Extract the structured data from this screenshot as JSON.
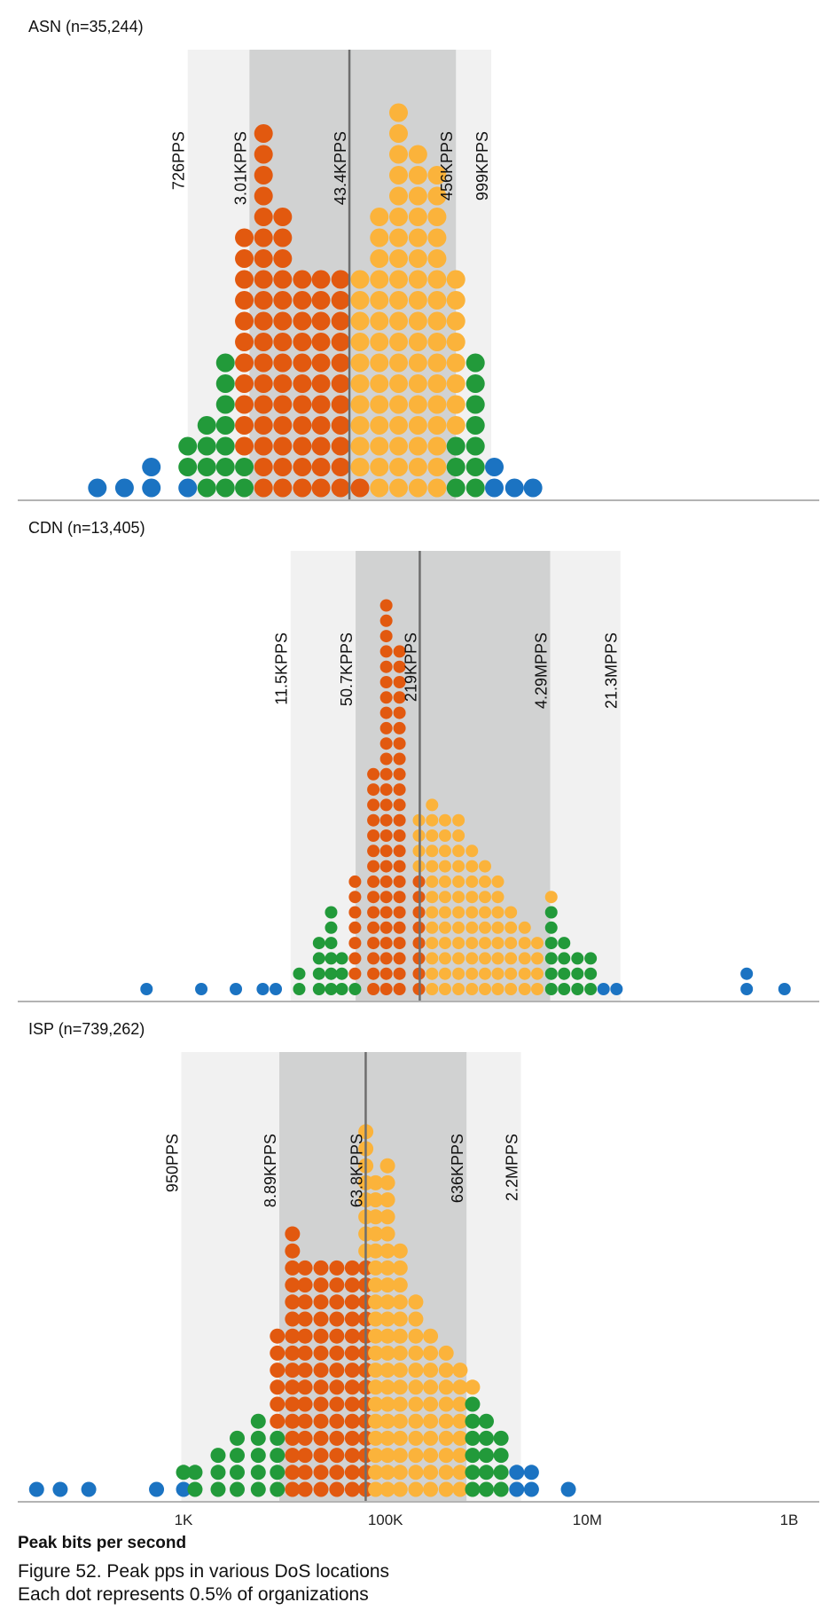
{
  "colors": {
    "outer_band": "#f1f1f1",
    "inner_band": "#d1d2d2",
    "median_line": "#6e6e6e",
    "below_p5_or_above_p95": "#1b73c2",
    "p5_to_p25_or_p75_to_p95": "#229a3a",
    "p25_to_median": "#e2590f",
    "median_to_p75": "#fbb33b"
  },
  "chart_data": [
    {
      "type": "scatter",
      "subtype": "dot-histogram",
      "title": "ASN (n=35,244)",
      "x_scale": "log10",
      "xlim": [
        1,
        1000000000
      ],
      "ticks": [
        1000,
        100000,
        10000000,
        1000000000
      ],
      "tick_labels": [
        "1K",
        "100K",
        "10M",
        "1B"
      ],
      "reference_lines": [
        {
          "label": "726PPS",
          "x": 1100
        },
        {
          "label": "3.01KPPS",
          "x": 4500
        },
        {
          "label": "43.4KPPS",
          "x": 44000
        },
        {
          "label": "456KPPS",
          "x": 500000
        },
        {
          "label": "999KPPS",
          "x": 1120000
        }
      ],
      "bin_x_start": 140,
      "bin_x_ratio": 1.3,
      "columns": [
        {
          "x": 140,
          "counts": [
            1,
            0,
            0,
            0
          ]
        },
        {
          "x": 260,
          "counts": [
            1,
            0,
            0,
            0
          ]
        },
        {
          "x": 480,
          "counts": [
            2,
            0,
            0,
            0
          ]
        },
        {
          "x": 1100,
          "counts": [
            1,
            2,
            0,
            0
          ]
        },
        {
          "x": 1700,
          "counts": [
            0,
            4,
            0,
            0
          ]
        },
        {
          "x": 2600,
          "counts": [
            0,
            7,
            0,
            0
          ]
        },
        {
          "x": 4000,
          "counts": [
            0,
            2,
            11,
            0
          ]
        },
        {
          "x": 6200,
          "counts": [
            0,
            0,
            18,
            0
          ]
        },
        {
          "x": 9600,
          "counts": [
            0,
            0,
            14,
            0
          ]
        },
        {
          "x": 15000,
          "counts": [
            0,
            0,
            11,
            0
          ]
        },
        {
          "x": 23000,
          "counts": [
            0,
            0,
            11,
            0
          ]
        },
        {
          "x": 36000,
          "counts": [
            0,
            0,
            11,
            0
          ]
        },
        {
          "x": 56000,
          "counts": [
            0,
            0,
            1,
            10
          ]
        },
        {
          "x": 87000,
          "counts": [
            0,
            0,
            0,
            14
          ]
        },
        {
          "x": 135000,
          "counts": [
            0,
            0,
            0,
            19
          ]
        },
        {
          "x": 210000,
          "counts": [
            0,
            0,
            0,
            17
          ]
        },
        {
          "x": 325000,
          "counts": [
            0,
            0,
            0,
            16
          ]
        },
        {
          "x": 500000,
          "counts": [
            0,
            3,
            0,
            8
          ]
        },
        {
          "x": 780000,
          "counts": [
            0,
            7,
            0,
            0
          ]
        },
        {
          "x": 1200000,
          "counts": [
            2,
            0,
            0,
            0
          ]
        },
        {
          "x": 1900000,
          "counts": [
            1,
            0,
            0,
            0
          ]
        },
        {
          "x": 2900000,
          "counts": [
            1,
            0,
            0,
            0
          ]
        }
      ]
    },
    {
      "type": "scatter",
      "subtype": "dot-histogram",
      "title": "CDN (n=13,405)",
      "x_scale": "log10",
      "xlim": [
        1,
        1000000000
      ],
      "ticks": [
        1000,
        100000,
        10000000,
        1000000000
      ],
      "tick_labels": [
        "1K",
        "100K",
        "10M",
        "1B"
      ],
      "reference_lines": [
        {
          "label": "11.5KPPS",
          "x": 11500
        },
        {
          "label": "50.7KPPS",
          "x": 50700
        },
        {
          "label": "219KPPS",
          "x": 219000
        },
        {
          "label": "4.29MPPS",
          "x": 4290000
        },
        {
          "label": "21.3MPPS",
          "x": 21300000
        }
      ],
      "bin_x_start": 430,
      "bin_x_ratio": 1.23,
      "columns": [
        {
          "x": 430,
          "counts": [
            1,
            0,
            0,
            0
          ]
        },
        {
          "x": 1500,
          "counts": [
            1,
            0,
            0,
            0
          ]
        },
        {
          "x": 3300,
          "counts": [
            1,
            0,
            0,
            0
          ]
        },
        {
          "x": 6100,
          "counts": [
            1,
            0,
            0,
            0
          ]
        },
        {
          "x": 8200,
          "counts": [
            1,
            0,
            0,
            0
          ]
        },
        {
          "x": 14000,
          "counts": [
            0,
            2,
            0,
            0
          ]
        },
        {
          "x": 22000,
          "counts": [
            0,
            4,
            0,
            0
          ]
        },
        {
          "x": 29000,
          "counts": [
            0,
            6,
            0,
            0
          ]
        },
        {
          "x": 37000,
          "counts": [
            0,
            3,
            0,
            0
          ]
        },
        {
          "x": 50000,
          "counts": [
            0,
            1,
            7,
            0
          ]
        },
        {
          "x": 76000,
          "counts": [
            0,
            0,
            15,
            0
          ]
        },
        {
          "x": 102000,
          "counts": [
            0,
            0,
            26,
            0
          ]
        },
        {
          "x": 138000,
          "counts": [
            0,
            0,
            23,
            0
          ]
        },
        {
          "x": 215000,
          "counts": [
            0,
            0,
            8,
            4
          ]
        },
        {
          "x": 290000,
          "counts": [
            0,
            0,
            0,
            13
          ]
        },
        {
          "x": 390000,
          "counts": [
            0,
            0,
            0,
            12
          ]
        },
        {
          "x": 530000,
          "counts": [
            0,
            0,
            0,
            12
          ]
        },
        {
          "x": 720000,
          "counts": [
            0,
            0,
            0,
            10
          ]
        },
        {
          "x": 970000,
          "counts": [
            0,
            0,
            0,
            9
          ]
        },
        {
          "x": 1300000,
          "counts": [
            0,
            0,
            0,
            8
          ]
        },
        {
          "x": 1750000,
          "counts": [
            0,
            0,
            0,
            6
          ]
        },
        {
          "x": 2400000,
          "counts": [
            0,
            0,
            0,
            5
          ]
        },
        {
          "x": 3200000,
          "counts": [
            0,
            0,
            0,
            4
          ]
        },
        {
          "x": 4400000,
          "counts": [
            0,
            6,
            0,
            1
          ]
        },
        {
          "x": 5900000,
          "counts": [
            0,
            4,
            0,
            0
          ]
        },
        {
          "x": 8000000,
          "counts": [
            0,
            3,
            0,
            0
          ]
        },
        {
          "x": 10800000,
          "counts": [
            0,
            3,
            0,
            0
          ]
        },
        {
          "x": 14500000,
          "counts": [
            1,
            0,
            0,
            0
          ]
        },
        {
          "x": 19500000,
          "counts": [
            1,
            0,
            0,
            0
          ]
        },
        {
          "x": 380000000,
          "counts": [
            2,
            0,
            0,
            0
          ]
        },
        {
          "x": 900000000,
          "counts": [
            1,
            0,
            0,
            0
          ]
        }
      ]
    },
    {
      "type": "scatter",
      "subtype": "dot-histogram",
      "title": "ISP (n=739,262)",
      "x_scale": "log10",
      "xlim": [
        1,
        1000000000
      ],
      "ticks": [
        1000,
        100000,
        10000000,
        1000000000
      ],
      "tick_labels": [
        "1K",
        "100K",
        "10M",
        "1B"
      ],
      "reference_lines": [
        {
          "label": "950PPS",
          "x": 950
        },
        {
          "label": "8.89KPPS",
          "x": 8890
        },
        {
          "label": "63.8KPPS",
          "x": 63800
        },
        {
          "label": "636KPPS",
          "x": 636000
        },
        {
          "label": "2.2MPPS",
          "x": 2200000
        }
      ],
      "bin_x_start": 35,
      "bin_x_ratio": 1.29,
      "columns": [
        {
          "x": 35,
          "counts": [
            1,
            0,
            0,
            0
          ]
        },
        {
          "x": 60,
          "counts": [
            1,
            0,
            0,
            0
          ]
        },
        {
          "x": 115,
          "counts": [
            1,
            0,
            0,
            0
          ]
        },
        {
          "x": 540,
          "counts": [
            1,
            0,
            0,
            0
          ]
        },
        {
          "x": 1000,
          "counts": [
            1,
            1,
            0,
            0
          ]
        },
        {
          "x": 1300,
          "counts": [
            0,
            2,
            0,
            0
          ]
        },
        {
          "x": 2200,
          "counts": [
            0,
            3,
            0,
            0
          ]
        },
        {
          "x": 3400,
          "counts": [
            0,
            4,
            0,
            0
          ]
        },
        {
          "x": 5500,
          "counts": [
            0,
            5,
            0,
            0
          ]
        },
        {
          "x": 8500,
          "counts": [
            0,
            4,
            6,
            0
          ]
        },
        {
          "x": 12000,
          "counts": [
            0,
            0,
            16,
            0
          ]
        },
        {
          "x": 16000,
          "counts": [
            0,
            0,
            14,
            0
          ]
        },
        {
          "x": 23000,
          "counts": [
            0,
            0,
            14,
            0
          ]
        },
        {
          "x": 33000,
          "counts": [
            0,
            0,
            14,
            0
          ]
        },
        {
          "x": 47000,
          "counts": [
            0,
            0,
            14,
            0
          ]
        },
        {
          "x": 64000,
          "counts": [
            0,
            0,
            14,
            8
          ]
        },
        {
          "x": 80000,
          "counts": [
            0,
            0,
            0,
            19
          ]
        },
        {
          "x": 105000,
          "counts": [
            0,
            0,
            0,
            20
          ]
        },
        {
          "x": 140000,
          "counts": [
            0,
            0,
            0,
            15
          ]
        },
        {
          "x": 200000,
          "counts": [
            0,
            0,
            0,
            12
          ]
        },
        {
          "x": 280000,
          "counts": [
            0,
            0,
            0,
            10
          ]
        },
        {
          "x": 400000,
          "counts": [
            0,
            0,
            0,
            9
          ]
        },
        {
          "x": 550000,
          "counts": [
            0,
            0,
            0,
            8
          ]
        },
        {
          "x": 730000,
          "counts": [
            0,
            6,
            0,
            1
          ]
        },
        {
          "x": 1000000,
          "counts": [
            0,
            5,
            0,
            0
          ]
        },
        {
          "x": 1400000,
          "counts": [
            0,
            4,
            0,
            0
          ]
        },
        {
          "x": 2000000,
          "counts": [
            2,
            0,
            0,
            0
          ]
        },
        {
          "x": 2800000,
          "counts": [
            2,
            0,
            0,
            0
          ]
        },
        {
          "x": 6500000,
          "counts": [
            1,
            0,
            0,
            0
          ]
        }
      ]
    }
  ],
  "xlabel": "Peak bits per second",
  "caption_line1": "Figure 52. Peak pps in various DoS locations",
  "caption_line2": "Each dot represents 0.5% of organizations"
}
